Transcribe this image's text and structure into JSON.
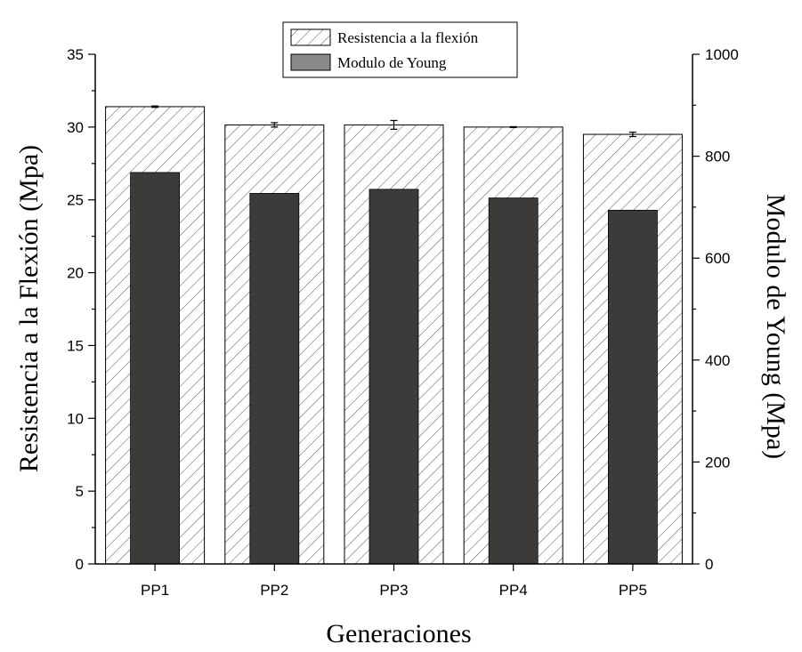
{
  "chart_data": {
    "type": "bar",
    "categories": [
      "PP1",
      "PP2",
      "PP3",
      "PP4",
      "PP5"
    ],
    "series": [
      {
        "name": "Resistencia a la flexión",
        "axis": "left",
        "pattern": "hatched",
        "values": [
          31.4,
          30.15,
          30.15,
          30.0,
          29.5
        ],
        "errors": [
          0.05,
          0.15,
          0.3,
          0.03,
          0.15
        ]
      },
      {
        "name": "Modulo de Young",
        "axis": "right",
        "color": "#3d3b39",
        "values": [
          768,
          727,
          735,
          718,
          694
        ]
      }
    ],
    "xlabel": "Generaciones",
    "ylabel_left": "Resistencia a la Flexión (Mpa)",
    "ylabel_right": "Modulo de Young (Mpa)",
    "ylim_left": [
      0,
      35
    ],
    "yticks_left": [
      0,
      5,
      10,
      15,
      20,
      25,
      30,
      35
    ],
    "ylim_right": [
      0,
      1000
    ],
    "yticks_right": [
      0,
      200,
      400,
      600,
      800,
      1000
    ],
    "grid": false,
    "legend_position": "top-center"
  }
}
